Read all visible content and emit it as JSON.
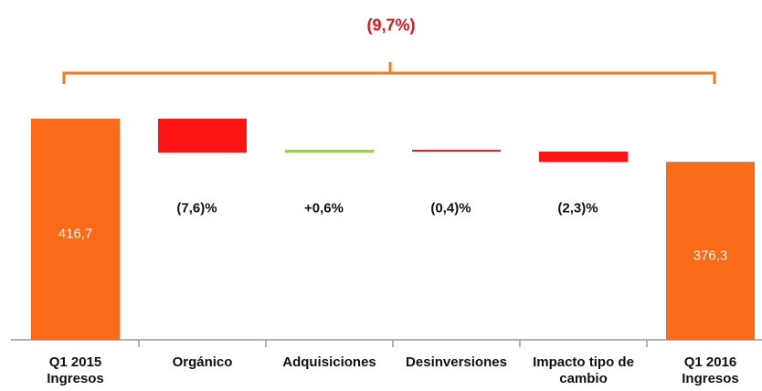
{
  "chart_data": {
    "type": "waterfall",
    "annotation": "(9,7%)",
    "categories": [
      "Q1 2015 Ingresos",
      "Orgánico",
      "Adquisiciones",
      "Desinversiones",
      "Impacto tipo de cambio",
      "Q1 2016 Ingresos"
    ],
    "measure": [
      "total",
      "relative",
      "relative",
      "relative",
      "relative",
      "total"
    ],
    "values": [
      416.7,
      -7.6,
      0.6,
      -0.4,
      -2.3,
      376.3
    ],
    "value_labels": [
      "416,7",
      "(7,6)%",
      "+0,6%",
      "(0,4)%",
      "(2,3)%",
      "376,3"
    ],
    "total_color": "#fb6a17",
    "increase_color": "#92d050",
    "decrease_color": "#ff1414",
    "annotation_color": "#f47b20",
    "ylim": [
      210,
      420
    ]
  }
}
